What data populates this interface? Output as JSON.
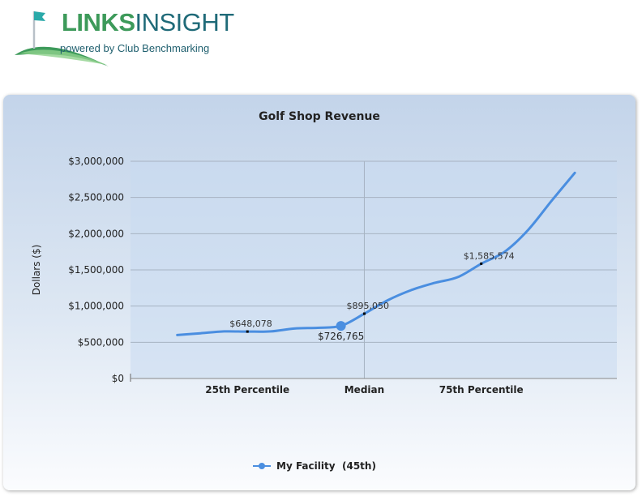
{
  "header": {
    "logo_word1": "LINKS",
    "logo_word2": "INSIGHT",
    "tagline": "powered by Club Benchmarking"
  },
  "colors": {
    "series": "#4a8ee0",
    "logo_green": "#3d9a5a",
    "logo_teal": "#1f6a78",
    "flag": "#2aa9a9"
  },
  "chart_data": {
    "type": "line",
    "title": "Golf Shop Revenue",
    "ylabel": "Dollars ($)",
    "xlabel": "",
    "ylim": [
      0,
      3000000
    ],
    "y_ticks": [
      0,
      500000,
      1000000,
      1500000,
      2000000,
      2500000,
      3000000
    ],
    "y_tick_labels": [
      "$0",
      "$500,000",
      "$1,000,000",
      "$1,500,000",
      "$2,000,000",
      "$2,500,000",
      "$3,000,000"
    ],
    "categories": [
      "25th Percentile",
      "Median",
      "75th Percentile"
    ],
    "percentile_points": [
      {
        "percentile": 25,
        "value": 648078,
        "label": "$648,078"
      },
      {
        "percentile": 50,
        "value": 895050,
        "label": "$895,050"
      },
      {
        "percentile": 75,
        "value": 1585574,
        "label": "$1,585,574"
      }
    ],
    "curve": {
      "percentiles": [
        10,
        15,
        20,
        25,
        30,
        35,
        40,
        45,
        50,
        55,
        60,
        65,
        70,
        75,
        80,
        85,
        90,
        95
      ],
      "values": [
        600000,
        625000,
        650000,
        648078,
        650000,
        690000,
        700000,
        726765,
        895050,
        1080000,
        1220000,
        1320000,
        1400000,
        1585574,
        1750000,
        2050000,
        2450000,
        2840000
      ]
    },
    "facility": {
      "percentile": 45,
      "value": 726765,
      "label": "$726,765"
    },
    "grid": true,
    "legend": {
      "position": "bottom",
      "series_name": "My Facility",
      "rank_label": "(45th)"
    },
    "series": [
      {
        "name": "My Facility"
      }
    ]
  }
}
